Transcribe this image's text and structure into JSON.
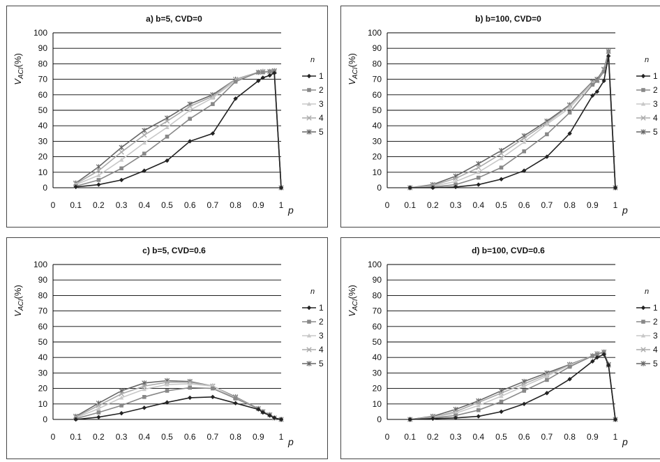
{
  "series_colors": [
    "#222222",
    "#888888",
    "#c8c8c8",
    "#aaaaaa",
    "#666666"
  ],
  "chart_data": [
    {
      "type": "line",
      "title": "a) b=5, CVD=0",
      "ylabel_main": "V",
      "ylabel_sub": "ACI",
      "ylabel_unit": "(%)",
      "xlabel": "p",
      "legend_title": "n",
      "legend_position": "right",
      "xlim": [
        0,
        1
      ],
      "ylim": [
        0,
        100
      ],
      "xticks": [
        "0",
        "0.1",
        "0.2",
        "0.3",
        "0.4",
        "0.5",
        "0.6",
        "0.7",
        "0.8",
        "0.9",
        "1"
      ],
      "yticks": [
        "0",
        "10",
        "20",
        "30",
        "40",
        "50",
        "60",
        "70",
        "80",
        "90",
        "100"
      ],
      "grid": "horizontal",
      "series": [
        {
          "name": "1",
          "marker": "diamond",
          "x": [
            0.1,
            0.2,
            0.3,
            0.4,
            0.5,
            0.6,
            0.7,
            0.8,
            0.9,
            0.92,
            0.95,
            0.97,
            1.0
          ],
          "y": [
            0.5,
            2,
            5,
            11,
            17.5,
            30,
            35,
            57.5,
            69,
            71,
            72.5,
            74,
            0
          ]
        },
        {
          "name": "2",
          "marker": "square",
          "x": [
            0.1,
            0.2,
            0.3,
            0.4,
            0.5,
            0.6,
            0.7,
            0.8,
            0.9,
            0.92,
            0.95,
            0.97,
            1.0
          ],
          "y": [
            1,
            5,
            12.5,
            22,
            33,
            44.5,
            54,
            68.5,
            74.5,
            74.5,
            75,
            75,
            0
          ]
        },
        {
          "name": "3",
          "marker": "triangle",
          "x": [
            0.1,
            0.2,
            0.3,
            0.4,
            0.5,
            0.6,
            0.7,
            0.8,
            0.9,
            0.92,
            0.95,
            0.97,
            1.0
          ],
          "y": [
            2,
            8,
            18,
            29,
            39,
            50,
            58,
            69,
            74.5,
            75,
            75,
            75,
            0
          ]
        },
        {
          "name": "4",
          "marker": "x",
          "x": [
            0.1,
            0.2,
            0.3,
            0.4,
            0.5,
            0.6,
            0.7,
            0.8,
            0.9,
            0.92,
            0.95,
            0.97,
            1.0
          ],
          "y": [
            2.5,
            11,
            23,
            34,
            43,
            52.5,
            59,
            70,
            74.5,
            75,
            75,
            75,
            0
          ]
        },
        {
          "name": "5",
          "marker": "star",
          "x": [
            0.1,
            0.2,
            0.3,
            0.4,
            0.5,
            0.6,
            0.7,
            0.8,
            0.9,
            0.92,
            0.95,
            0.97,
            1.0
          ],
          "y": [
            3,
            13.5,
            26,
            37,
            45,
            54,
            60,
            70,
            74.5,
            75,
            75,
            75.5,
            0
          ]
        }
      ]
    },
    {
      "type": "line",
      "title": "b) b=100, CVD=0",
      "ylabel_main": "V",
      "ylabel_sub": "ACI",
      "ylabel_unit": "(%)",
      "xlabel": "p",
      "legend_title": "n",
      "legend_position": "right",
      "xlim": [
        0,
        1
      ],
      "ylim": [
        0,
        100
      ],
      "xticks": [
        "0",
        "0.1",
        "0.2",
        "0.3",
        "0.4",
        "0.5",
        "0.6",
        "0.7",
        "0.8",
        "0.9",
        "1"
      ],
      "yticks": [
        "0",
        "10",
        "20",
        "30",
        "40",
        "50",
        "60",
        "70",
        "80",
        "90",
        "100"
      ],
      "grid": "horizontal",
      "series": [
        {
          "name": "1",
          "marker": "diamond",
          "x": [
            0.1,
            0.2,
            0.3,
            0.4,
            0.5,
            0.6,
            0.7,
            0.8,
            0.9,
            0.92,
            0.95,
            0.97,
            1.0
          ],
          "y": [
            0,
            0,
            0.5,
            2,
            5.5,
            11,
            20,
            35,
            59.5,
            62,
            69,
            85,
            0
          ]
        },
        {
          "name": "2",
          "marker": "square",
          "x": [
            0.1,
            0.2,
            0.3,
            0.4,
            0.5,
            0.6,
            0.7,
            0.8,
            0.9,
            0.92,
            0.95,
            0.97,
            1.0
          ],
          "y": [
            0,
            0.5,
            2,
            6.5,
            13,
            23.5,
            34.5,
            48.5,
            66.5,
            69,
            75,
            88,
            0
          ]
        },
        {
          "name": "3",
          "marker": "triangle",
          "x": [
            0.1,
            0.2,
            0.3,
            0.4,
            0.5,
            0.6,
            0.7,
            0.8,
            0.9,
            0.92,
            0.95,
            0.97,
            1.0
          ],
          "y": [
            0,
            1,
            4,
            10,
            19,
            29.5,
            41,
            51.5,
            67.5,
            69,
            75.5,
            88,
            0
          ]
        },
        {
          "name": "4",
          "marker": "x",
          "x": [
            0.1,
            0.2,
            0.3,
            0.4,
            0.5,
            0.6,
            0.7,
            0.8,
            0.9,
            0.92,
            0.95,
            0.97,
            1.0
          ],
          "y": [
            0,
            1.5,
            6,
            13,
            22,
            32,
            42,
            53,
            68,
            69,
            76,
            88,
            0
          ]
        },
        {
          "name": "5",
          "marker": "star",
          "x": [
            0.1,
            0.2,
            0.3,
            0.4,
            0.5,
            0.6,
            0.7,
            0.8,
            0.9,
            0.92,
            0.95,
            0.97,
            1.0
          ],
          "y": [
            0,
            2,
            7.5,
            15.5,
            24,
            33.5,
            43,
            53.5,
            68.5,
            70,
            76.5,
            88,
            0
          ]
        }
      ]
    },
    {
      "type": "line",
      "title": "c) b=5, CVD=0.6",
      "ylabel_main": "V",
      "ylabel_sub": "ACI",
      "ylabel_unit": "(%)",
      "xlabel": "p",
      "legend_title": "n",
      "legend_position": "right",
      "xlim": [
        0,
        1
      ],
      "ylim": [
        0,
        100
      ],
      "xticks": [
        "0",
        "0.1",
        "0.2",
        "0.3",
        "0.4",
        "0.5",
        "0.6",
        "0.7",
        "0.8",
        "0.9",
        "1"
      ],
      "yticks": [
        "0",
        "10",
        "20",
        "30",
        "40",
        "50",
        "60",
        "70",
        "80",
        "90",
        "100"
      ],
      "grid": "horizontal",
      "series": [
        {
          "name": "1",
          "marker": "diamond",
          "x": [
            0.1,
            0.2,
            0.3,
            0.4,
            0.5,
            0.6,
            0.7,
            0.8,
            0.9,
            0.92,
            0.95,
            0.97,
            1.0
          ],
          "y": [
            0,
            1.5,
            4,
            7.5,
            11,
            14,
            14.5,
            10.5,
            6.5,
            4.5,
            2.5,
            1,
            0
          ]
        },
        {
          "name": "2",
          "marker": "square",
          "x": [
            0.1,
            0.2,
            0.3,
            0.4,
            0.5,
            0.6,
            0.7,
            0.8,
            0.9,
            0.92,
            0.95,
            0.97,
            1.0
          ],
          "y": [
            0.5,
            4.5,
            9,
            14.5,
            18.5,
            20.5,
            20,
            13.5,
            7,
            5,
            3,
            1,
            0
          ]
        },
        {
          "name": "3",
          "marker": "triangle",
          "x": [
            0.1,
            0.2,
            0.3,
            0.4,
            0.5,
            0.6,
            0.7,
            0.8,
            0.9,
            0.92,
            0.95,
            0.97,
            1.0
          ],
          "y": [
            1,
            7,
            14,
            19.5,
            22.5,
            23,
            21.5,
            14,
            7,
            5,
            3,
            1,
            0
          ]
        },
        {
          "name": "4",
          "marker": "x",
          "x": [
            0.1,
            0.2,
            0.3,
            0.4,
            0.5,
            0.6,
            0.7,
            0.8,
            0.9,
            0.92,
            0.95,
            0.97,
            1.0
          ],
          "y": [
            1.5,
            9,
            16.5,
            21.5,
            24,
            24,
            21.5,
            14,
            7,
            5,
            3,
            1,
            0
          ]
        },
        {
          "name": "5",
          "marker": "star",
          "x": [
            0.1,
            0.2,
            0.3,
            0.4,
            0.5,
            0.6,
            0.7,
            0.8,
            0.9,
            0.92,
            0.95,
            0.97,
            1.0
          ],
          "y": [
            2,
            10.5,
            18.5,
            23.5,
            25,
            24.5,
            21.5,
            14.5,
            7,
            5,
            3,
            1,
            0
          ]
        }
      ]
    },
    {
      "type": "line",
      "title": "d) b=100, CVD=0.6",
      "ylabel_main": "V",
      "ylabel_sub": "ACI",
      "ylabel_unit": "(%)",
      "xlabel": "p",
      "legend_title": "n",
      "legend_position": "right",
      "xlim": [
        0,
        1
      ],
      "ylim": [
        0,
        100
      ],
      "xticks": [
        "0",
        "0.1",
        "0.2",
        "0.3",
        "0.4",
        "0.5",
        "0.6",
        "0.7",
        "0.8",
        "0.9",
        "1"
      ],
      "yticks": [
        "0",
        "10",
        "20",
        "30",
        "40",
        "50",
        "60",
        "70",
        "80",
        "90",
        "100"
      ],
      "grid": "horizontal",
      "series": [
        {
          "name": "1",
          "marker": "diamond",
          "x": [
            0.1,
            0.2,
            0.3,
            0.4,
            0.5,
            0.6,
            0.7,
            0.8,
            0.9,
            0.92,
            0.95,
            0.97,
            1.0
          ],
          "y": [
            0,
            0.5,
            1,
            2,
            5,
            10,
            17,
            26,
            37.5,
            40,
            42,
            35,
            0
          ]
        },
        {
          "name": "2",
          "marker": "square",
          "x": [
            0.1,
            0.2,
            0.3,
            0.4,
            0.5,
            0.6,
            0.7,
            0.8,
            0.9,
            0.92,
            0.95,
            0.97,
            1.0
          ],
          "y": [
            0,
            1,
            2.5,
            6,
            11.5,
            18.5,
            25.5,
            34,
            41,
            42,
            43.5,
            35,
            0
          ]
        },
        {
          "name": "3",
          "marker": "triangle",
          "x": [
            0.1,
            0.2,
            0.3,
            0.4,
            0.5,
            0.6,
            0.7,
            0.8,
            0.9,
            0.92,
            0.95,
            0.97,
            1.0
          ],
          "y": [
            0,
            1.5,
            4,
            9,
            15,
            21.5,
            28,
            35,
            41,
            42.5,
            43.5,
            35,
            0
          ]
        },
        {
          "name": "4",
          "marker": "x",
          "x": [
            0.1,
            0.2,
            0.3,
            0.4,
            0.5,
            0.6,
            0.7,
            0.8,
            0.9,
            0.92,
            0.95,
            0.97,
            1.0
          ],
          "y": [
            0,
            1.5,
            5,
            11,
            17,
            23,
            29,
            35,
            41,
            42.5,
            43.5,
            35,
            0
          ]
        },
        {
          "name": "5",
          "marker": "star",
          "x": [
            0.1,
            0.2,
            0.3,
            0.4,
            0.5,
            0.6,
            0.7,
            0.8,
            0.9,
            0.92,
            0.95,
            0.97,
            1.0
          ],
          "y": [
            0,
            2,
            6.5,
            12,
            18.5,
            24.5,
            30,
            35.5,
            41,
            42.5,
            43.5,
            35.5,
            0
          ]
        }
      ]
    }
  ]
}
